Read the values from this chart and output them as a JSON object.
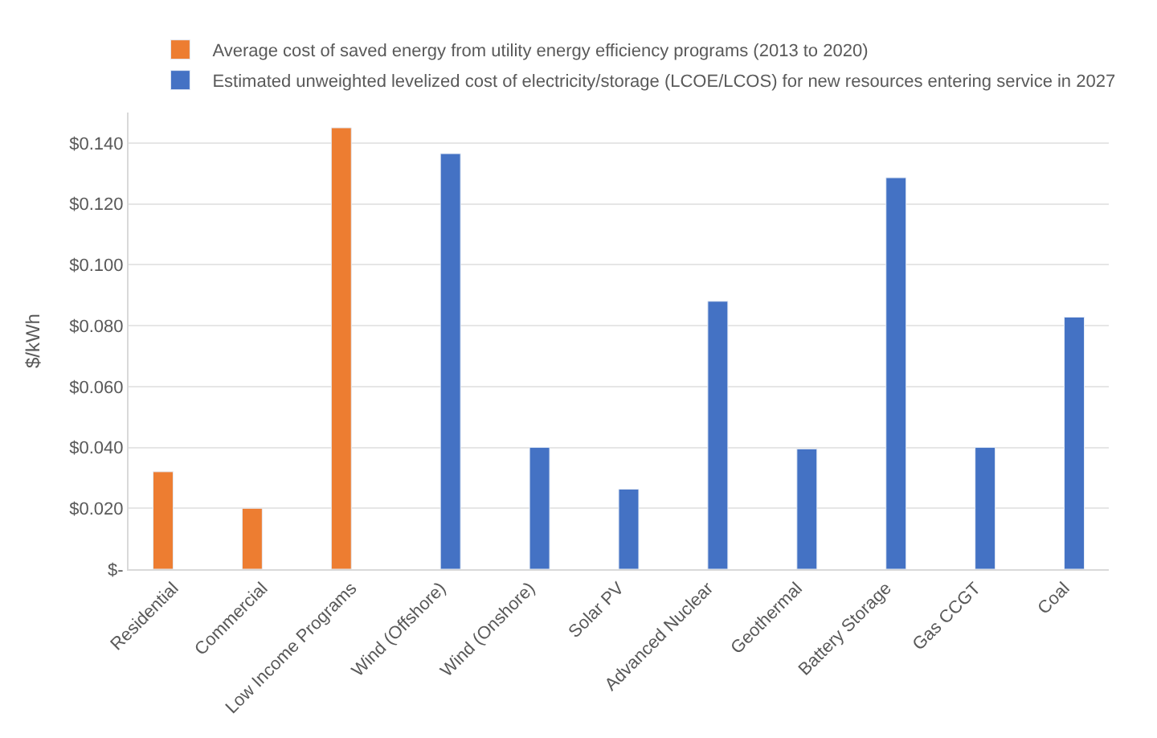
{
  "chart_data": {
    "type": "bar",
    "ylabel": "$/kWh",
    "categories": [
      "Residential",
      "Commercial",
      "Low Income Programs",
      "Wind (Offshore)",
      "Wind (Onshore)",
      "Solar PV",
      "Advanced Nuclear",
      "Geothermal",
      "Battery Storage",
      "Gas CCGT",
      "Coal"
    ],
    "series": [
      {
        "name": "Average cost of saved energy from utility energy efficiency programs (2013 to 2020)",
        "color": "#ed7d31",
        "values": [
          0.032,
          0.02,
          0.145,
          null,
          null,
          null,
          null,
          null,
          null,
          null,
          null
        ]
      },
      {
        "name": "Estimated unweighted levelized cost of electricity/storage (LCOE/LCOS) for new resources entering service in 2027",
        "color": "#4472c4",
        "values": [
          null,
          null,
          null,
          0.1365,
          0.04,
          0.0263,
          0.088,
          0.0395,
          0.1286,
          0.04,
          0.0828
        ]
      }
    ],
    "ylim": [
      0,
      0.15
    ],
    "yticks": [
      {
        "value": 0,
        "label": "$-"
      },
      {
        "value": 0.02,
        "label": "$0.020"
      },
      {
        "value": 0.04,
        "label": "$0.040"
      },
      {
        "value": 0.06,
        "label": "$0.060"
      },
      {
        "value": 0.08,
        "label": "$0.080"
      },
      {
        "value": 0.1,
        "label": "$0.100"
      },
      {
        "value": 0.12,
        "label": "$0.120"
      },
      {
        "value": 0.14,
        "label": "$0.140"
      }
    ],
    "grid": "y",
    "legend": "top"
  }
}
